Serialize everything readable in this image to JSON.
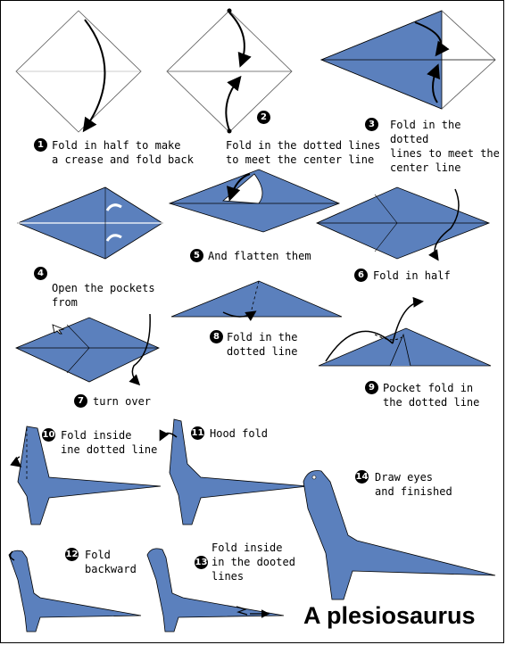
{
  "title": "A plesiosaurus",
  "colors": {
    "paper": "#5b80bd",
    "line": "#000000",
    "crease": "#333333"
  },
  "steps": [
    {
      "n": "1",
      "text": "Fold in half to make\na crease and fold back"
    },
    {
      "n": "2",
      "text": "Fold in the dotted lines\nto meet the center line"
    },
    {
      "n": "3",
      "text": "Fold in the dotted\nlines to meet the\ncenter line"
    },
    {
      "n": "4",
      "text": "Open the pockets\nfrom",
      "icon": "pointer-arrow-icon"
    },
    {
      "n": "5",
      "text": "And flatten them"
    },
    {
      "n": "6",
      "text": "Fold in half"
    },
    {
      "n": "7",
      "text": "turn over"
    },
    {
      "n": "8",
      "text": "Fold in the\ndotted line"
    },
    {
      "n": "9",
      "text": "Pocket fold in\nthe dotted line"
    },
    {
      "n": "10",
      "text": "Fold inside\nine dotted line"
    },
    {
      "n": "11",
      "text": "Hood fold"
    },
    {
      "n": "12",
      "text": "Fold\nbackward"
    },
    {
      "n": "13",
      "text": "Fold inside\nin the dooted\nlines"
    },
    {
      "n": "14",
      "text": "Draw eyes\nand finished"
    }
  ]
}
